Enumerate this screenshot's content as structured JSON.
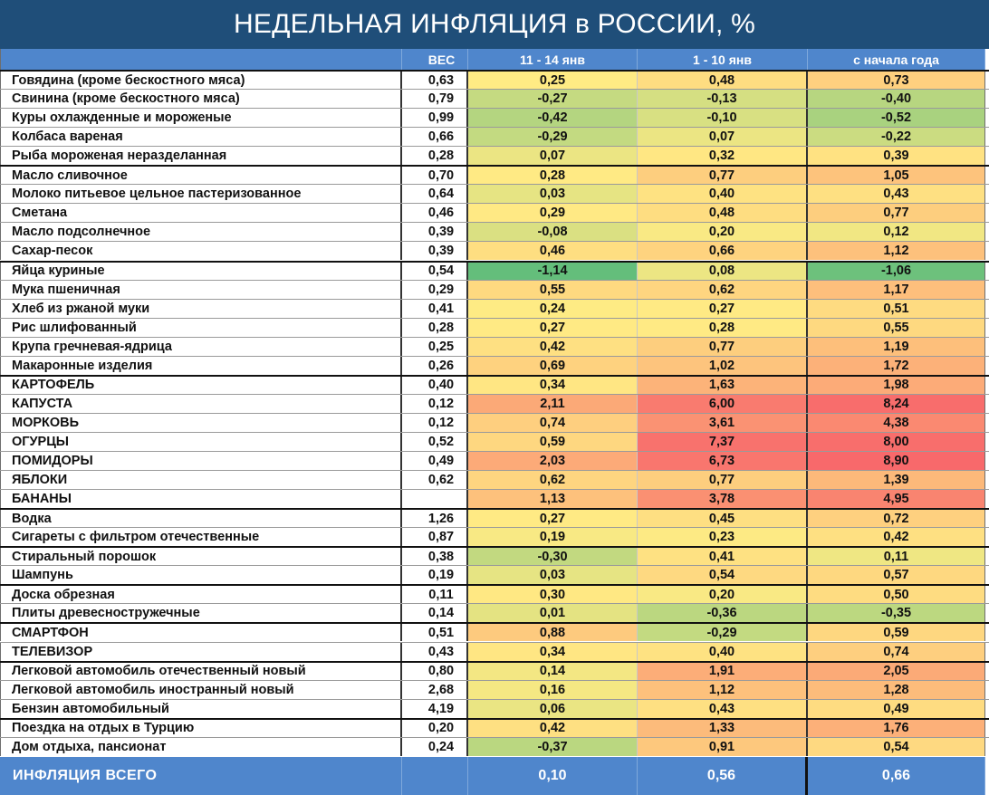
{
  "title": "НЕДЕЛЬНАЯ ИНФЛЯЦИЯ в РОССИИ, %",
  "colors": {
    "title_bg": "#1f4e79",
    "header_bg": "#4f86cc",
    "neg_strong": "#63be7b",
    "neutral": "#ffeb84",
    "pos_strong": "#f8696b"
  },
  "chart_data": {
    "type": "table",
    "title": "НЕДЕЛЬНАЯ ИНФЛЯЦИЯ в РОССИИ, %",
    "columns": [
      "",
      "ВЕС",
      "11 - 14 янв",
      "1 - 10 янв",
      "с начала года"
    ],
    "rows": [
      {
        "name": "Говядина (кроме бескостного мяса)",
        "weight": "0,63",
        "v1": "0,25",
        "v2": "0,48",
        "v3": "0,73",
        "group_start": true
      },
      {
        "name": "Свинина (кроме бескостного мяса)",
        "weight": "0,79",
        "v1": "-0,27",
        "v2": "-0,13",
        "v3": "-0,40"
      },
      {
        "name": "Куры охлажденные и мороженые",
        "weight": "0,99",
        "v1": "-0,42",
        "v2": "-0,10",
        "v3": "-0,52"
      },
      {
        "name": "Колбаса вареная",
        "weight": "0,66",
        "v1": "-0,29",
        "v2": "0,07",
        "v3": "-0,22"
      },
      {
        "name": "Рыба мороженая неразделанная",
        "weight": "0,28",
        "v1": "0,07",
        "v2": "0,32",
        "v3": "0,39"
      },
      {
        "name": "Масло сливочное",
        "weight": "0,70",
        "v1": "0,28",
        "v2": "0,77",
        "v3": "1,05",
        "group_start": true
      },
      {
        "name": "Молоко питьевое цельное пастеризованное",
        "weight": "0,64",
        "v1": "0,03",
        "v2": "0,40",
        "v3": "0,43"
      },
      {
        "name": "Сметана",
        "weight": "0,46",
        "v1": "0,29",
        "v2": "0,48",
        "v3": "0,77"
      },
      {
        "name": "Масло подсолнечное",
        "weight": "0,39",
        "v1": "-0,08",
        "v2": "0,20",
        "v3": "0,12"
      },
      {
        "name": "Сахар-песок",
        "weight": "0,39",
        "v1": "0,46",
        "v2": "0,66",
        "v3": "1,12"
      },
      {
        "name": "Яйца куриные",
        "weight": "0,54",
        "v1": "-1,14",
        "v2": "0,08",
        "v3": "-1,06",
        "group_start": true
      },
      {
        "name": "Мука пшеничная",
        "weight": "0,29",
        "v1": "0,55",
        "v2": "0,62",
        "v3": "1,17"
      },
      {
        "name": "Хлеб из ржаной муки",
        "weight": "0,41",
        "v1": "0,24",
        "v2": "0,27",
        "v3": "0,51"
      },
      {
        "name": "Рис шлифованный",
        "weight": "0,28",
        "v1": "0,27",
        "v2": "0,28",
        "v3": "0,55"
      },
      {
        "name": "Крупа гречневая-ядрица",
        "weight": "0,25",
        "v1": "0,42",
        "v2": "0,77",
        "v3": "1,19"
      },
      {
        "name": "Макаронные изделия",
        "weight": "0,26",
        "v1": "0,69",
        "v2": "1,02",
        "v3": "1,72"
      },
      {
        "name": "КАРТОФЕЛЬ",
        "weight": "0,40",
        "v1": "0,34",
        "v2": "1,63",
        "v3": "1,98",
        "group_start": true
      },
      {
        "name": "КАПУСТА",
        "weight": "0,12",
        "v1": "2,11",
        "v2": "6,00",
        "v3": "8,24"
      },
      {
        "name": "МОРКОВЬ",
        "weight": "0,12",
        "v1": "0,74",
        "v2": "3,61",
        "v3": "4,38"
      },
      {
        "name": "ОГУРЦЫ",
        "weight": "0,52",
        "v1": "0,59",
        "v2": "7,37",
        "v3": "8,00"
      },
      {
        "name": "ПОМИДОРЫ",
        "weight": "0,49",
        "v1": "2,03",
        "v2": "6,73",
        "v3": "8,90"
      },
      {
        "name": "ЯБЛОКИ",
        "weight": "0,62",
        "v1": "0,62",
        "v2": "0,77",
        "v3": "1,39"
      },
      {
        "name": "БАНАНЫ",
        "weight": "",
        "v1": "1,13",
        "v2": "3,78",
        "v3": "4,95"
      },
      {
        "name": "Водка",
        "weight": "1,26",
        "v1": "0,27",
        "v2": "0,45",
        "v3": "0,72",
        "group_start": true
      },
      {
        "name": "Сигареты с фильтром отечественные",
        "weight": "0,87",
        "v1": "0,19",
        "v2": "0,23",
        "v3": "0,42"
      },
      {
        "name": "Стиральный порошок",
        "weight": "0,38",
        "v1": "-0,30",
        "v2": "0,41",
        "v3": "0,11",
        "group_start": true
      },
      {
        "name": "Шампунь",
        "weight": "0,19",
        "v1": "0,03",
        "v2": "0,54",
        "v3": "0,57"
      },
      {
        "name": "Доска обрезная",
        "weight": "0,11",
        "v1": "0,30",
        "v2": "0,20",
        "v3": "0,50",
        "group_start": true
      },
      {
        "name": "Плиты древесностружечные",
        "weight": "0,14",
        "v1": "0,01",
        "v2": "-0,36",
        "v3": "-0,35"
      },
      {
        "name": "СМАРТФОН",
        "weight": "0,51",
        "v1": "0,88",
        "v2": "-0,29",
        "v3": "0,59",
        "group_start": true
      },
      {
        "name": "ТЕЛЕВИЗОР",
        "weight": "0,43",
        "v1": "0,34",
        "v2": "0,40",
        "v3": "0,74"
      },
      {
        "name": "Легковой автомобиль отечественный новый",
        "weight": "0,80",
        "v1": "0,14",
        "v2": "1,91",
        "v3": "2,05",
        "group_start": true
      },
      {
        "name": "Легковой автомобиль иностранный новый",
        "weight": "2,68",
        "v1": "0,16",
        "v2": "1,12",
        "v3": "1,28"
      },
      {
        "name": "Бензин автомобильный",
        "weight": "4,19",
        "v1": "0,06",
        "v2": "0,43",
        "v3": "0,49"
      },
      {
        "name": "Поездка на отдых в Турцию",
        "weight": "0,20",
        "v1": "0,42",
        "v2": "1,33",
        "v3": "1,76",
        "group_start": true
      },
      {
        "name": "Дом отдыха, пансионат",
        "weight": "0,24",
        "v1": "-0,37",
        "v2": "0,91",
        "v3": "0,54"
      }
    ],
    "total": {
      "name": "ИНФЛЯЦИЯ ВСЕГО",
      "weight": "",
      "v1": "0,10",
      "v2": "0,56",
      "v3": "0,66"
    }
  }
}
